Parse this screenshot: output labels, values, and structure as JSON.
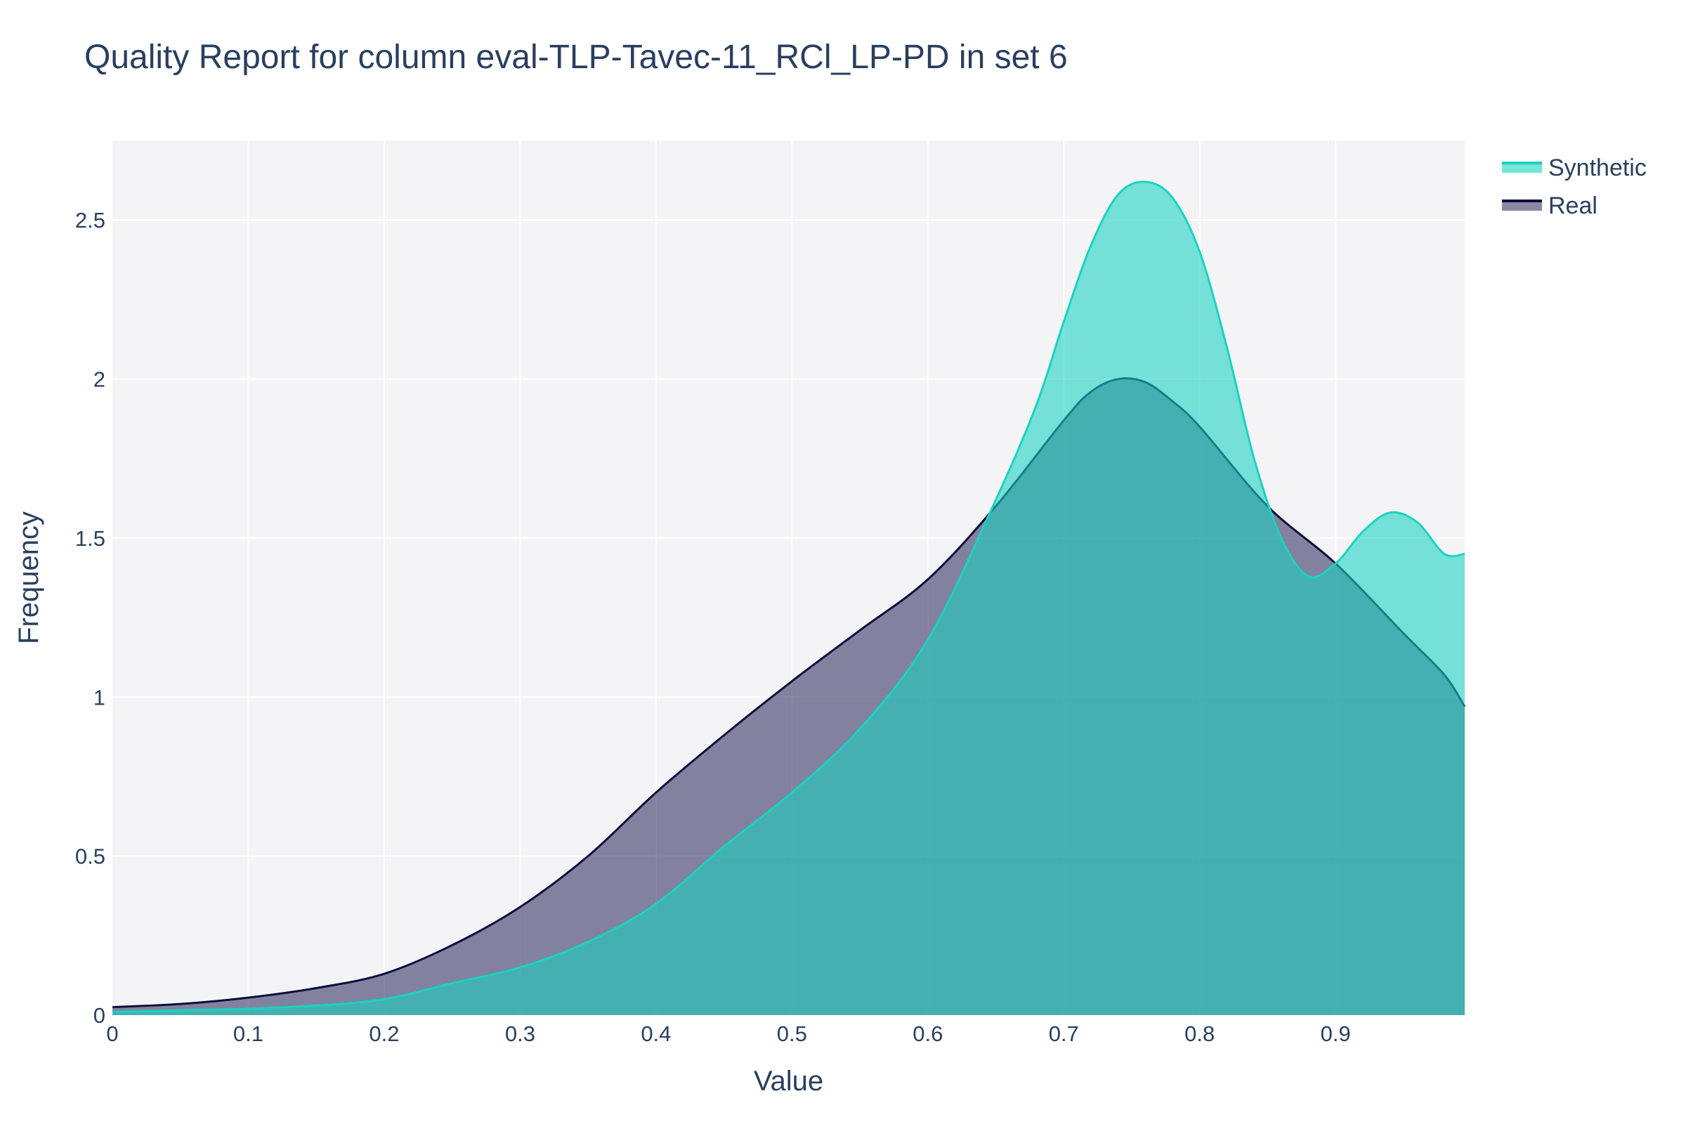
{
  "chart_data": {
    "type": "area",
    "title": "Quality Report for column eval-TLP-Tavec-11_RCl_LP-PD in set 6",
    "xlabel": "Value",
    "ylabel": "Frequency",
    "xlim": [
      0,
      0.995
    ],
    "ylim": [
      0,
      2.75
    ],
    "x_ticks": [
      "0",
      "0.1",
      "0.2",
      "0.3",
      "0.4",
      "0.5",
      "0.6",
      "0.7",
      "0.8",
      "0.9"
    ],
    "y_ticks": [
      "0",
      "0.5",
      "1",
      "1.5",
      "2",
      "2.5"
    ],
    "grid": true,
    "legend_position": "top-right",
    "series": [
      {
        "name": "Real",
        "line_color": "#0d0d3d",
        "fill_color": "#3b3b6b",
        "x": [
          0,
          0.05,
          0.1,
          0.15,
          0.2,
          0.25,
          0.3,
          0.35,
          0.4,
          0.45,
          0.5,
          0.55,
          0.6,
          0.65,
          0.7,
          0.72,
          0.74,
          0.76,
          0.78,
          0.8,
          0.85,
          0.9,
          0.95,
          0.98,
          0.995
        ],
        "values": [
          0.025,
          0.035,
          0.055,
          0.085,
          0.13,
          0.22,
          0.34,
          0.5,
          0.7,
          0.88,
          1.05,
          1.21,
          1.37,
          1.6,
          1.87,
          1.96,
          2.0,
          1.99,
          1.93,
          1.85,
          1.6,
          1.42,
          1.2,
          1.07,
          0.97
        ]
      },
      {
        "name": "Synthetic",
        "line_color": "#19d3c0",
        "fill_color": "#19d3c0",
        "x": [
          0,
          0.05,
          0.1,
          0.15,
          0.2,
          0.25,
          0.3,
          0.35,
          0.4,
          0.45,
          0.5,
          0.55,
          0.6,
          0.65,
          0.68,
          0.7,
          0.72,
          0.74,
          0.76,
          0.78,
          0.8,
          0.82,
          0.84,
          0.86,
          0.88,
          0.9,
          0.92,
          0.94,
          0.96,
          0.98,
          0.995
        ],
        "values": [
          0.01,
          0.015,
          0.02,
          0.03,
          0.05,
          0.1,
          0.15,
          0.23,
          0.35,
          0.53,
          0.7,
          0.9,
          1.18,
          1.62,
          1.92,
          2.18,
          2.42,
          2.58,
          2.62,
          2.57,
          2.4,
          2.1,
          1.75,
          1.5,
          1.38,
          1.42,
          1.52,
          1.58,
          1.55,
          1.45,
          1.45
        ]
      }
    ],
    "legend": [
      {
        "name": "Synthetic",
        "line_color": "#19d3c0",
        "fill_color": "#19d3c0"
      },
      {
        "name": "Real",
        "line_color": "#0d0d3d",
        "fill_color": "#3b3b6b"
      }
    ]
  }
}
